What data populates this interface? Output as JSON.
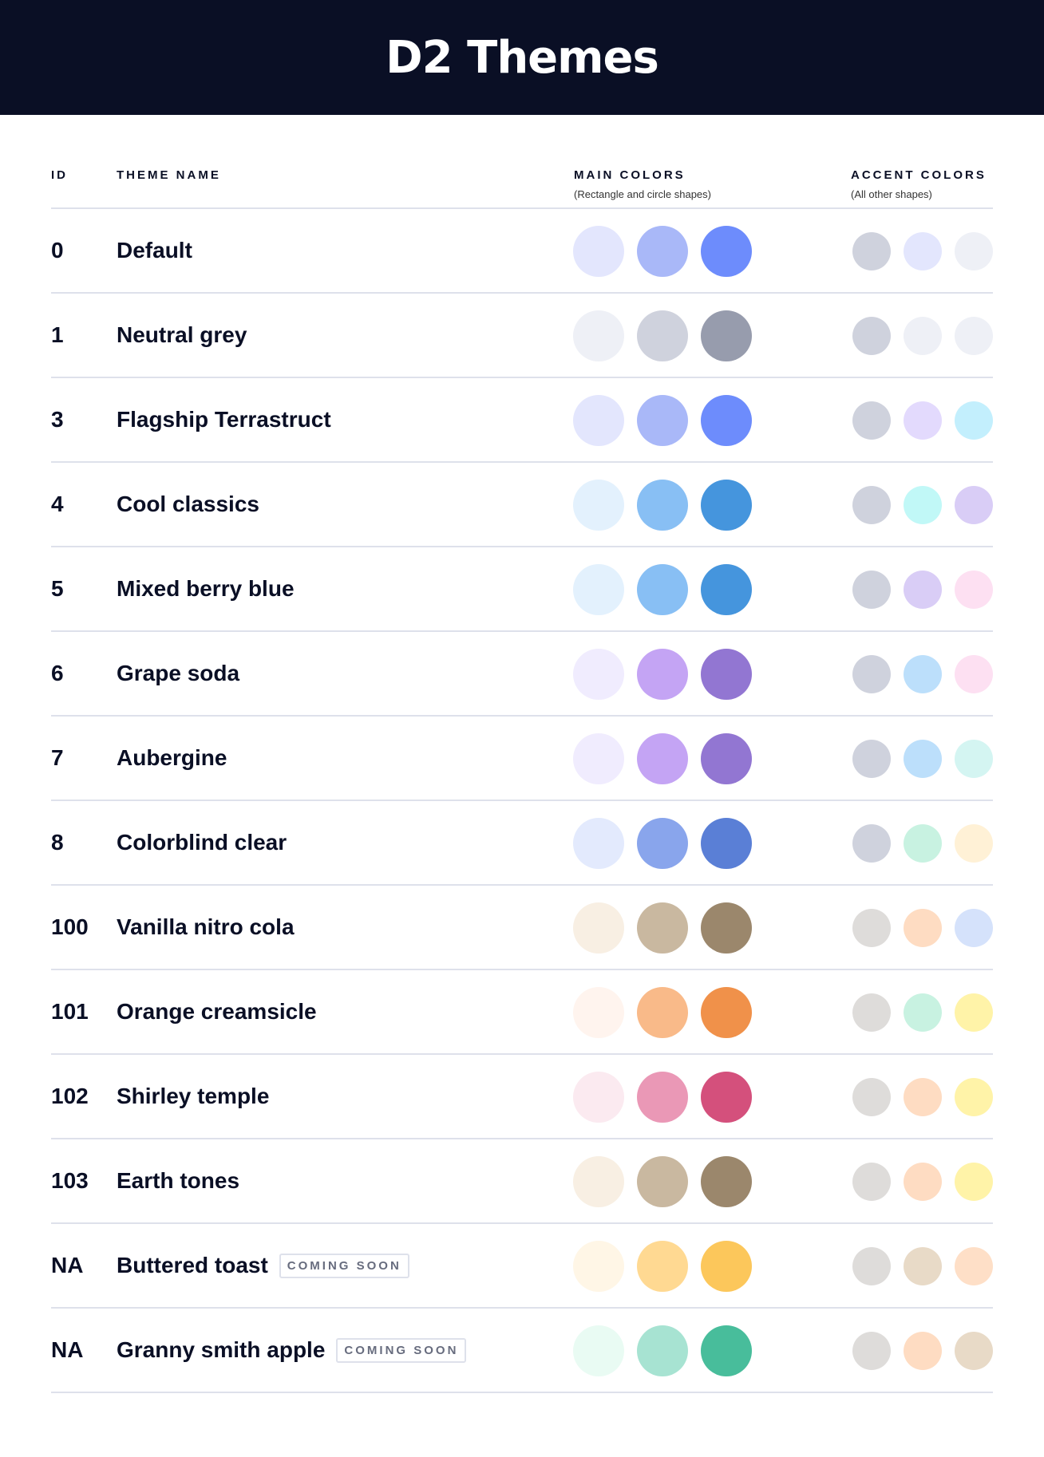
{
  "title": "D2 Themes",
  "columns": {
    "id": "ID",
    "name": "THEME NAME",
    "main": "MAIN COLORS",
    "main_sub": "(Rectangle and circle shapes)",
    "accent": "ACCENT COLORS",
    "accent_sub": "(All other shapes)"
  },
  "badge": "COMING SOON",
  "themes": [
    {
      "id": "0",
      "name": "Default",
      "main": [
        "#e3e6fd",
        "#a9b8f8",
        "#6d8cfc"
      ],
      "accent": [
        "#cfd2dd",
        "#e3e6fd",
        "#eef0f6"
      ]
    },
    {
      "id": "1",
      "name": "Neutral grey",
      "main": [
        "#eef0f6",
        "#cfd2dd",
        "#979cad"
      ],
      "accent": [
        "#cfd2dd",
        "#eef0f6",
        "#eef0f6"
      ]
    },
    {
      "id": "3",
      "name": "Flagship Terrastruct",
      "main": [
        "#e3e6fd",
        "#a9b8f8",
        "#6d8cfc"
      ],
      "accent": [
        "#cfd2dd",
        "#e3dafd",
        "#c3effd"
      ]
    },
    {
      "id": "4",
      "name": "Cool classics",
      "main": [
        "#e3f1fd",
        "#88bff4",
        "#4595dd"
      ],
      "accent": [
        "#cfd2dd",
        "#c1f8f7",
        "#d9cdf6"
      ]
    },
    {
      "id": "5",
      "name": "Mixed berry blue",
      "main": [
        "#e3f1fd",
        "#88bff4",
        "#4595dd"
      ],
      "accent": [
        "#cfd2dd",
        "#d9cdf6",
        "#fde0f2"
      ]
    },
    {
      "id": "6",
      "name": "Grape soda",
      "main": [
        "#f0ecfe",
        "#c4a4f4",
        "#9276d2"
      ],
      "accent": [
        "#cfd2dd",
        "#bcdffb",
        "#fde0f2"
      ]
    },
    {
      "id": "7",
      "name": "Aubergine",
      "main": [
        "#f0ecfe",
        "#c4a4f4",
        "#9276d2"
      ],
      "accent": [
        "#cfd2dd",
        "#bcdffb",
        "#d4f5f2"
      ]
    },
    {
      "id": "8",
      "name": "Colorblind clear",
      "main": [
        "#e3eafd",
        "#89a5ec",
        "#5a7fd6"
      ],
      "accent": [
        "#cfd2dd",
        "#c8f2e1",
        "#fff1d6"
      ]
    },
    {
      "id": "100",
      "name": "Vanilla nitro cola",
      "main": [
        "#f8efe3",
        "#c9b8a0",
        "#9b876c"
      ],
      "accent": [
        "#dedcda",
        "#fedcc2",
        "#d5e2fb"
      ]
    },
    {
      "id": "101",
      "name": "Orange creamsicle",
      "main": [
        "#fff4ee",
        "#f9ba89",
        "#f0914a"
      ],
      "accent": [
        "#dedcda",
        "#c8f2e1",
        "#fff3a8"
      ]
    },
    {
      "id": "102",
      "name": "Shirley temple",
      "main": [
        "#fbeaf0",
        "#ea98b6",
        "#d4507c"
      ],
      "accent": [
        "#dedcda",
        "#fedcc2",
        "#fff3a8"
      ]
    },
    {
      "id": "103",
      "name": "Earth tones",
      "main": [
        "#f8efe3",
        "#c9b8a0",
        "#9b876c"
      ],
      "accent": [
        "#dedcda",
        "#fedcc2",
        "#fff3a8"
      ]
    },
    {
      "id": "NA",
      "name": "Buttered toast",
      "main": [
        "#fff6e6",
        "#ffd992",
        "#fcc75b"
      ],
      "accent": [
        "#dedcda",
        "#e8dac7",
        "#fedfc7"
      ],
      "coming_soon": true
    },
    {
      "id": "NA",
      "name": "Granny smith apple",
      "main": [
        "#e9fbf3",
        "#a7e3d2",
        "#48bd9b"
      ],
      "accent": [
        "#dedcda",
        "#fedcc2",
        "#e8dac7"
      ],
      "coming_soon": true
    }
  ]
}
